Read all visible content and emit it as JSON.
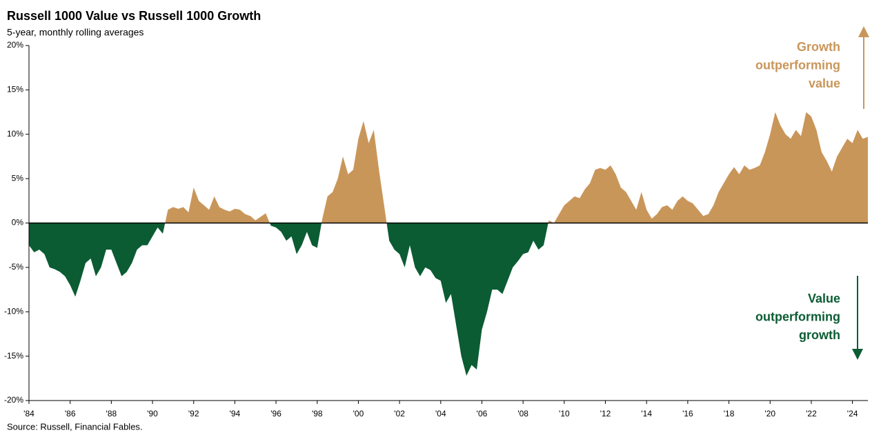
{
  "chart_data": {
    "type": "area",
    "title": "Russell 1000 Value vs Russell 1000 Growth",
    "subtitle": "5-year, monthly rolling averages",
    "source": "Source: Russell, Financial Fables.",
    "x": [
      1984,
      1984.25,
      1984.5,
      1984.75,
      1985,
      1985.25,
      1985.5,
      1985.75,
      1986,
      1986.25,
      1986.5,
      1986.75,
      1987,
      1987.25,
      1987.5,
      1987.75,
      1988,
      1988.25,
      1988.5,
      1988.75,
      1989,
      1989.25,
      1989.5,
      1989.75,
      1990,
      1990.25,
      1990.5,
      1990.75,
      1991,
      1991.25,
      1991.5,
      1991.75,
      1992,
      1992.25,
      1992.5,
      1992.75,
      1993,
      1993.25,
      1993.5,
      1993.75,
      1994,
      1994.25,
      1994.5,
      1994.75,
      1995,
      1995.25,
      1995.5,
      1995.75,
      1996,
      1996.25,
      1996.5,
      1996.75,
      1997,
      1997.25,
      1997.5,
      1997.75,
      1998,
      1998.25,
      1998.5,
      1998.75,
      1999,
      1999.25,
      1999.5,
      1999.75,
      2000,
      2000.25,
      2000.5,
      2000.75,
      2001,
      2001.25,
      2001.5,
      2001.75,
      2002,
      2002.25,
      2002.5,
      2002.75,
      2003,
      2003.25,
      2003.5,
      2003.75,
      2004,
      2004.25,
      2004.5,
      2004.75,
      2005,
      2005.25,
      2005.5,
      2005.75,
      2006,
      2006.25,
      2006.5,
      2006.75,
      2007,
      2007.25,
      2007.5,
      2007.75,
      2008,
      2008.25,
      2008.5,
      2008.75,
      2009,
      2009.25,
      2009.5,
      2009.75,
      2010,
      2010.25,
      2010.5,
      2010.75,
      2011,
      2011.25,
      2011.5,
      2011.75,
      2012,
      2012.25,
      2012.5,
      2012.75,
      2013,
      2013.25,
      2013.5,
      2013.75,
      2014,
      2014.25,
      2014.5,
      2014.75,
      2015,
      2015.25,
      2015.5,
      2015.75,
      2016,
      2016.25,
      2016.5,
      2016.75,
      2017,
      2017.25,
      2017.5,
      2017.75,
      2018,
      2018.25,
      2018.5,
      2018.75,
      2019,
      2019.25,
      2019.5,
      2019.75,
      2020,
      2020.25,
      2020.5,
      2020.75,
      2021,
      2021.25,
      2021.5,
      2021.75,
      2022,
      2022.25,
      2022.5,
      2022.75,
      2023,
      2023.25,
      2023.5,
      2023.75,
      2024,
      2024.25,
      2024.5,
      2024.75
    ],
    "values": [
      -2.5,
      -3.3,
      -3.0,
      -3.5,
      -5.0,
      -5.2,
      -5.5,
      -6.0,
      -7.0,
      -8.3,
      -6.5,
      -4.5,
      -4.0,
      -6.0,
      -5.0,
      -3.0,
      -3.0,
      -4.5,
      -6.0,
      -5.5,
      -4.5,
      -3.0,
      -2.5,
      -2.5,
      -1.5,
      -0.5,
      -1.2,
      1.5,
      1.8,
      1.6,
      1.8,
      1.2,
      4.0,
      2.5,
      2.0,
      1.5,
      3.0,
      1.8,
      1.5,
      1.3,
      1.6,
      1.5,
      1.0,
      0.8,
      0.3,
      0.7,
      1.1,
      -0.3,
      -0.5,
      -1.0,
      -2.0,
      -1.5,
      -3.5,
      -2.5,
      -1.0,
      -2.5,
      -2.8,
      0.5,
      3.0,
      3.5,
      5.0,
      7.5,
      5.5,
      6.0,
      9.5,
      11.5,
      9.0,
      10.5,
      6.0,
      2.0,
      -2.0,
      -3.0,
      -3.5,
      -5.0,
      -2.5,
      -5.0,
      -6.0,
      -5.0,
      -5.3,
      -6.2,
      -6.5,
      -9.0,
      -8.0,
      -11.5,
      -15.0,
      -17.2,
      -16.0,
      -16.5,
      -12.0,
      -10.0,
      -7.5,
      -7.5,
      -8.0,
      -6.5,
      -5.0,
      -4.3,
      -3.5,
      -3.3,
      -2.0,
      -3.0,
      -2.5,
      0.3,
      0.0,
      1.0,
      2.0,
      2.5,
      3.0,
      2.8,
      3.8,
      4.5,
      6.0,
      6.2,
      6.0,
      6.5,
      5.5,
      4.0,
      3.5,
      2.5,
      1.5,
      3.5,
      1.5,
      0.5,
      1.0,
      1.8,
      2.0,
      1.5,
      2.5,
      3.0,
      2.5,
      2.2,
      1.5,
      0.8,
      1.0,
      2.0,
      3.5,
      4.5,
      5.5,
      6.3,
      5.5,
      6.5,
      6.0,
      6.2,
      6.5,
      8.0,
      10.0,
      12.5,
      11.0,
      10.0,
      9.5,
      10.5,
      9.8,
      12.5,
      12.0,
      10.5,
      8.0,
      7.0,
      5.8,
      7.5,
      8.5,
      9.5,
      9.0,
      10.5,
      9.5,
      9.7
    ],
    "color_positive": "#c9965a",
    "color_negative": "#0b5c33",
    "xlim": [
      1984,
      2024.75
    ],
    "xticks": [
      {
        "value": 1984,
        "label": "'84"
      },
      {
        "value": 1986,
        "label": "'86"
      },
      {
        "value": 1988,
        "label": "'88"
      },
      {
        "value": 1990,
        "label": "'90"
      },
      {
        "value": 1992,
        "label": "'92"
      },
      {
        "value": 1994,
        "label": "'94"
      },
      {
        "value": 1996,
        "label": "'96"
      },
      {
        "value": 1998,
        "label": "'98"
      },
      {
        "value": 2000,
        "label": "'00"
      },
      {
        "value": 2002,
        "label": "'02"
      },
      {
        "value": 2004,
        "label": "'04"
      },
      {
        "value": 2006,
        "label": "'06"
      },
      {
        "value": 2008,
        "label": "'08"
      },
      {
        "value": 2010,
        "label": "'10"
      },
      {
        "value": 2012,
        "label": "'12"
      },
      {
        "value": 2014,
        "label": "'14"
      },
      {
        "value": 2016,
        "label": "'16"
      },
      {
        "value": 2018,
        "label": "'18"
      },
      {
        "value": 2020,
        "label": "'20"
      },
      {
        "value": 2022,
        "label": "'22"
      },
      {
        "value": 2024,
        "label": "'24"
      }
    ],
    "ylim": [
      -20,
      20
    ],
    "yticks": [
      {
        "value": 20,
        "label": "20%"
      },
      {
        "value": 15,
        "label": "15%"
      },
      {
        "value": 10,
        "label": "10%"
      },
      {
        "value": 5,
        "label": "5%"
      },
      {
        "value": 0,
        "label": "0%"
      },
      {
        "value": -5,
        "label": "-5%"
      },
      {
        "value": -10,
        "label": "-10%"
      },
      {
        "value": -15,
        "label": "-15%"
      },
      {
        "value": -20,
        "label": "-20%"
      }
    ],
    "annotations": [
      {
        "lines": [
          "Growth",
          "outperforming",
          "value"
        ],
        "color": "#c9965a"
      },
      {
        "lines": [
          "Value",
          "outperforming",
          "growth"
        ],
        "color": "#0b5c33"
      }
    ]
  }
}
